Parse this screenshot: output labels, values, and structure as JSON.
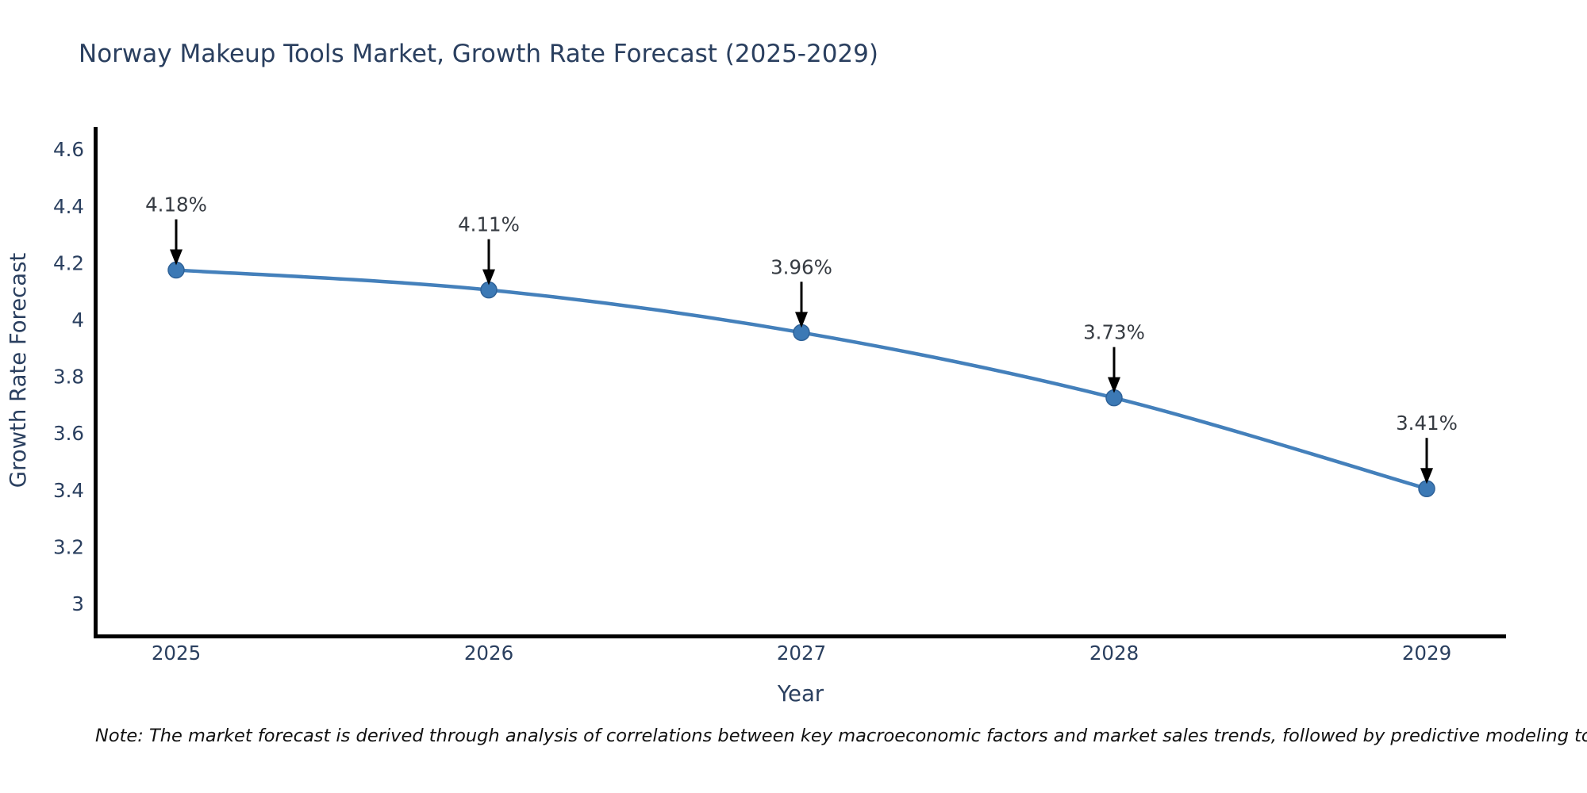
{
  "title": "Norway Makeup Tools Market, Growth Rate Forecast (2025-2029)",
  "note": "Note: The market forecast is derived through analysis of correlations between key macroeconomic factors and market sales trends, followed by predictive modeling to project future sales",
  "colors": {
    "title": "#2a3f5f",
    "tick_label": "#2a3f5f",
    "axis_title": "#2a3f5f",
    "axis_line": "#000000",
    "series_line": "#4480bb",
    "marker_fill": "#3c79b5",
    "marker_edge": "#2f6298",
    "annotation_text": "#363b42",
    "annotation_arrow": "#000000",
    "note_text": "#111111",
    "background": "#ffffff"
  },
  "chart_data": {
    "type": "line",
    "title": "Norway Makeup Tools Market, Growth Rate Forecast (2025-2029)",
    "x": [
      2025,
      2026,
      2027,
      2028,
      2029
    ],
    "y": [
      4.18,
      4.11,
      3.96,
      3.73,
      3.41
    ],
    "point_labels": [
      "4.18%",
      "4.11%",
      "3.96%",
      "3.73%",
      "3.41%"
    ],
    "xlabel": "Year",
    "ylabel": "Growth Rate Forecast",
    "xtick_labels": [
      "2025",
      "2026",
      "2027",
      "2028",
      "2029"
    ],
    "ytick_values": [
      3,
      3.2,
      3.4,
      3.6,
      3.8,
      4,
      4.2,
      4.4,
      4.6
    ],
    "ytick_labels": [
      "3",
      "3.2",
      "3.4",
      "3.6",
      "3.8",
      "4",
      "4.2",
      "4.4",
      "4.6"
    ],
    "ylim": [
      2.89,
      4.69
    ],
    "xlim": [
      2024.74,
      2029.25
    ],
    "grid": false,
    "legend": "none",
    "line_shape": "spline",
    "annotation_style": "value-above-with-down-arrow"
  }
}
